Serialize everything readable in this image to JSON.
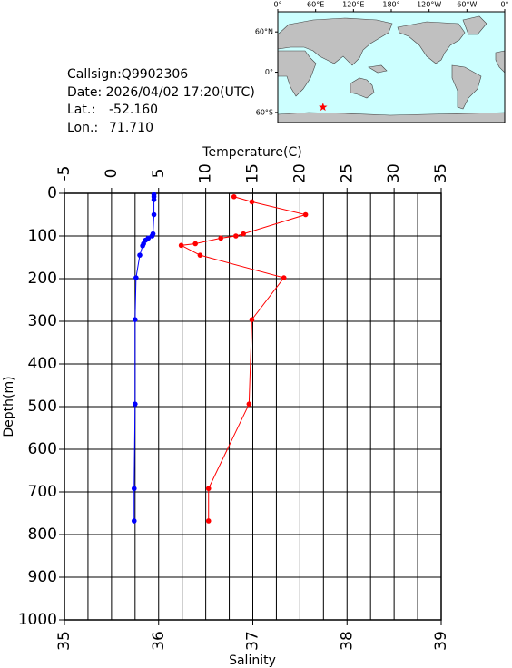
{
  "chart_data": {
    "type": "line",
    "x_label": "Temperature(C)",
    "x2_label": "Salinity",
    "y_label": "Depth(m)",
    "xlim": [
      -5,
      35
    ],
    "xticks": [
      -5,
      0,
      5,
      10,
      15,
      20,
      25,
      30,
      35
    ],
    "xgrid": [
      -2.5,
      2.5,
      7.5,
      12.5,
      17.5,
      22.5,
      27.5,
      32.5
    ],
    "x2lim": [
      35,
      39
    ],
    "x2ticks": [
      35,
      36,
      37,
      38,
      39
    ],
    "ylim": [
      0,
      1000
    ],
    "yticks": [
      0,
      100,
      200,
      300,
      400,
      500,
      600,
      700,
      800,
      900,
      1000
    ],
    "grid": true,
    "series": [
      {
        "color": "#ff0000",
        "axis": "x",
        "depths": [
          8,
          20,
          50,
          95,
          100,
          105,
          118,
          122,
          145,
          198,
          296,
          494,
          692,
          768
        ],
        "values": [
          13.0,
          14.9,
          20.6,
          14.0,
          13.2,
          11.6,
          8.9,
          7.4,
          9.4,
          18.3,
          14.9,
          14.6,
          10.3,
          10.3
        ]
      },
      {
        "color": "#0000ff",
        "axis": "x2",
        "depths": [
          3,
          8,
          15,
          50,
          95,
          100,
          105,
          110,
          118,
          123,
          145,
          198,
          296,
          494,
          692,
          768
        ],
        "values": [
          35.95,
          35.95,
          35.95,
          35.95,
          35.94,
          35.93,
          35.89,
          35.86,
          35.84,
          35.83,
          35.8,
          35.76,
          35.75,
          35.75,
          35.74,
          35.74
        ]
      }
    ]
  },
  "info": {
    "callsign": "Callsign:Q9902306",
    "date": "Date:  2026/04/02 17:20(UTC)",
    "lat_label": "Lat.:",
    "lat": {
      "value": -52.16,
      "label": "-52.160"
    },
    "lon_label": "Lon.:",
    "lon": {
      "value": 71.71,
      "label": "71.710"
    }
  },
  "map": {
    "lonlim": [
      0,
      360
    ],
    "latlim": [
      -75,
      90
    ],
    "lonticks": [
      {
        "value": 0,
        "label": "0°"
      },
      {
        "value": 60,
        "label": "60°E"
      },
      {
        "value": 120,
        "label": "120°E"
      },
      {
        "value": 180,
        "label": "180°"
      },
      {
        "value": 240,
        "label": "120°W"
      },
      {
        "value": 300,
        "label": "60°W"
      },
      {
        "value": 360,
        "label": "0°"
      }
    ],
    "latticks": [
      {
        "value": 60,
        "label": "60°N"
      },
      {
        "value": 0,
        "label": "0°"
      },
      {
        "value": -60,
        "label": "60°S"
      }
    ]
  }
}
